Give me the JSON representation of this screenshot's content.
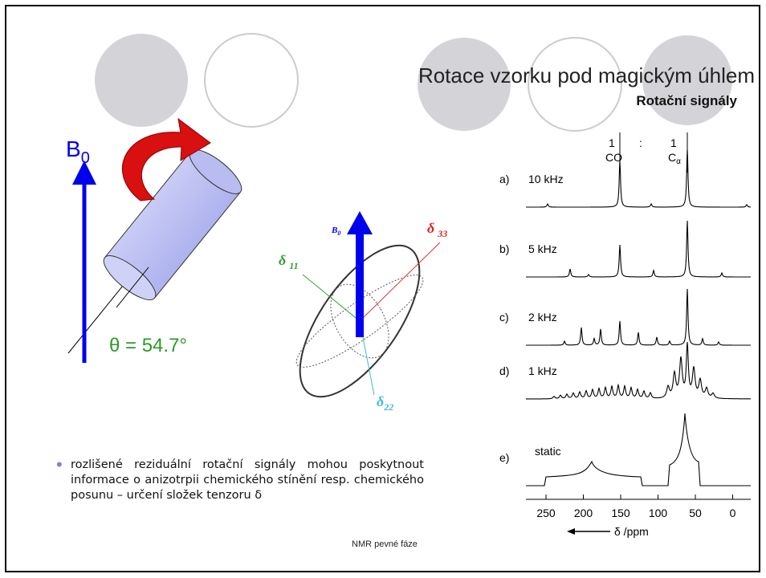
{
  "header": {
    "title": "Rotace vzorku pod magickým úhlem",
    "subtitle": "Rotační signály"
  },
  "rotor_diagram": {
    "field_symbol": "B",
    "field_subscript": "0",
    "angle_label": "θ = 54.7°"
  },
  "tensor_diagram": {
    "field_symbol": "B",
    "field_subscript": "0",
    "delta11": {
      "symbol": "δ",
      "index": "11"
    },
    "delta22": {
      "symbol": "δ",
      "index": "22"
    },
    "delta33": {
      "symbol": "δ",
      "index": "33"
    }
  },
  "spectra": {
    "ratio_left": "1",
    "ratio_sep": ":",
    "ratio_right": "1",
    "co_label": "CO",
    "ca_symbol": "C",
    "ca_subscript": "α",
    "traces": [
      {
        "letter": "a)",
        "label": "10 kHz"
      },
      {
        "letter": "b)",
        "label": "5 kHz"
      },
      {
        "letter": "c)",
        "label": "2 kHz"
      },
      {
        "letter": "d)",
        "label": "1 kHz"
      },
      {
        "letter": "e)",
        "label": "static"
      }
    ],
    "axis": {
      "ticks": [
        "250",
        "200",
        "150",
        "100",
        "50",
        "0"
      ],
      "label": "δ /ppm"
    }
  },
  "bullets": [
    "rozlišené reziduální rotační signály mohou poskytnout informace o anizotrpii chemického stínění resp. chemického posunu – určení složek tenzoru δ"
  ],
  "footer": "NMR pevné fáze"
}
